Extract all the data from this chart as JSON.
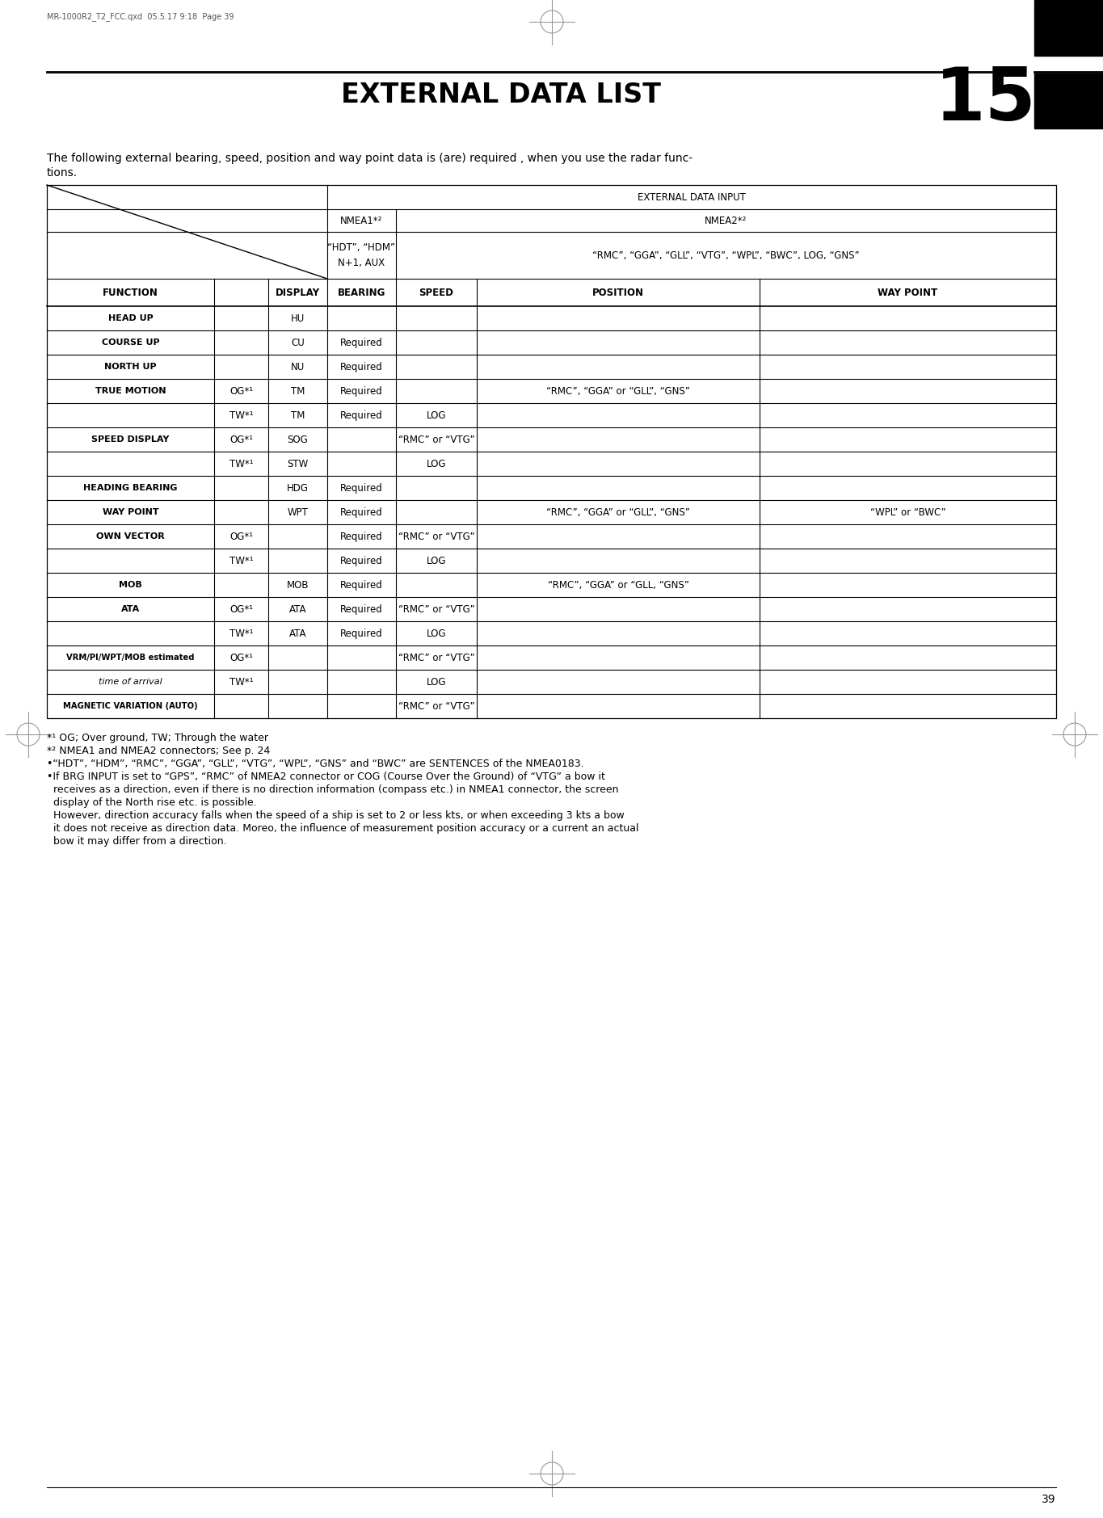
{
  "page_header": "MR-1000R2_T2_FCC.qxd  05.5.17 9:18  Page 39",
  "chapter_title": "EXTERNAL DATA LIST",
  "chapter_number": "15",
  "intro_line1": "The following external bearing, speed, position and way point data is (are) required , when you use the radar func-",
  "intro_line2": "tions.",
  "table_rows": [
    [
      "HEAD UP",
      "",
      "HU",
      "",
      "",
      "",
      ""
    ],
    [
      "COURSE UP",
      "",
      "CU",
      "Required",
      "",
      "",
      ""
    ],
    [
      "NORTH UP",
      "",
      "NU",
      "Required",
      "",
      "",
      ""
    ],
    [
      "TRUE MOTION",
      "OG*¹",
      "TM",
      "Required",
      "",
      "“RMC”, “GGA” or “GLL”, “GNS”",
      ""
    ],
    [
      "",
      "TW*¹",
      "TM",
      "Required",
      "LOG",
      "",
      ""
    ],
    [
      "SPEED DISPLAY",
      "OG*¹",
      "SOG",
      "",
      "“RMC” or “VTG”",
      "",
      ""
    ],
    [
      "",
      "TW*¹",
      "STW",
      "",
      "LOG",
      "",
      ""
    ],
    [
      "HEADING BEARING",
      "",
      "HDG",
      "Required",
      "",
      "",
      ""
    ],
    [
      "WAY POINT",
      "",
      "WPT",
      "Required",
      "",
      "“RMC”, “GGA” or “GLL”, “GNS”",
      "“WPL” or “BWC”"
    ],
    [
      "OWN VECTOR",
      "OG*¹",
      "",
      "Required",
      "“RMC” or “VTG”",
      "",
      ""
    ],
    [
      "",
      "TW*¹",
      "",
      "Required",
      "LOG",
      "",
      ""
    ],
    [
      "MOB",
      "",
      "MOB",
      "Required",
      "",
      "“RMC”, “GGA” or “GLL, “GNS”",
      ""
    ],
    [
      "ATA",
      "OG*¹",
      "ATA",
      "Required",
      "“RMC” or “VTG”",
      "",
      ""
    ],
    [
      "",
      "TW*¹",
      "ATA",
      "Required",
      "LOG",
      "",
      ""
    ],
    [
      "VRM/PI/WPT/MOB estimated",
      "OG*¹",
      "",
      "",
      "“RMC” or “VTG”",
      "",
      ""
    ],
    [
      "time of arrival",
      "TW*¹",
      "",
      "",
      "LOG",
      "",
      ""
    ],
    [
      "MAGNETIC VARIATION (AUTO)",
      "",
      "",
      "",
      "“RMC” or “VTG”",
      "",
      ""
    ]
  ],
  "fn1": "*¹ OG; Over ground, TW; Through the water",
  "fn2": "*² NMEA1 and NMEA2 connectors; See p. 24",
  "fn3": "•“HDT”, “HDM”, “RMC”, “GGA”, “GLL”, “VTG”, “WPL”, “GNS” and “BWC” are SENTENCES of the NMEA0183.",
  "fn4a": "•If BRG INPUT is set to “GPS”, “RMC” of NMEA2 connector or COG (Course Over the Ground) of “VTG” a bow it",
  "fn4b": "  receives as a direction, even if there is no direction information (compass etc.) in NMEA1 connector, the screen",
  "fn4c": "  display of the North rise etc. is possible.",
  "fn4d": "  However, direction accuracy falls when the speed of a ship is set to 2 or less kts, or when exceeding 3 kts a bow",
  "fn4e": "  it does not receive as direction data. Moreo, the inﬂuence of measurement position accuracy or a current an actual",
  "fn4f": "  bow it may differ from a direction.",
  "page_number": "39"
}
